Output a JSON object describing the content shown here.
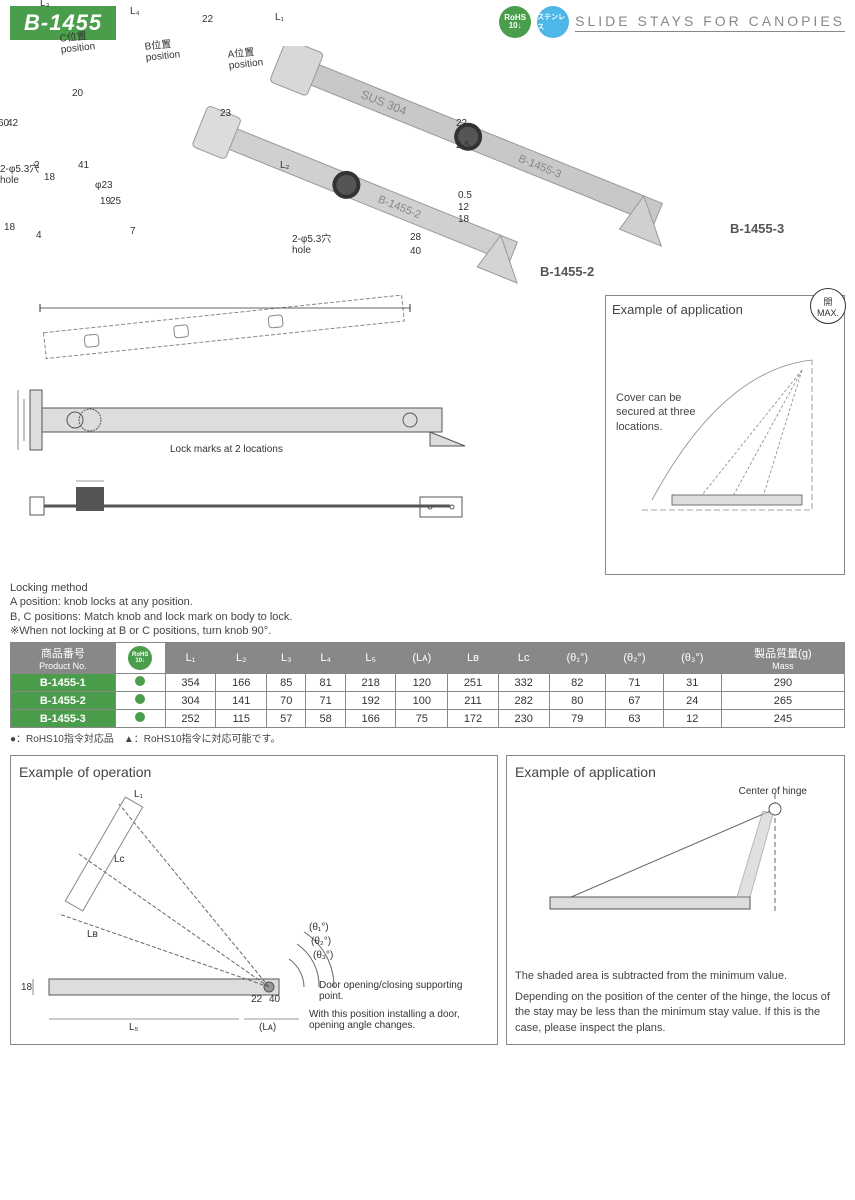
{
  "header": {
    "product_code": "B-1455",
    "rohs_label_top": "RoHS",
    "rohs_label_bottom": "10↓",
    "stainless_label": "ステンレス",
    "category": "SLIDE STAYS FOR CANOPIES"
  },
  "photos": {
    "label_2": "B-1455-2",
    "label_3": "B-1455-3"
  },
  "upper_diagram": {
    "labels": {
      "L1": "L₁",
      "L3": "L₃",
      "L4": "L₄",
      "dim22": "22",
      "posA": "A位置\nposition",
      "posB": "B位置\nposition",
      "posC": "C位置\nposition",
      "d60": "60",
      "d42": "42",
      "d20": "20",
      "d23": "23",
      "dr22": "22",
      "d25p": "2.5",
      "hole1": "2-φ5.3穴\nhole",
      "d2": "2",
      "d18": "18",
      "d41": "41",
      "L2": "L₂",
      "lockmark": "Lock marks at 2 locations",
      "phi23": "φ23",
      "d19": "19",
      "d25": "25",
      "d18b": "18",
      "d4": "4",
      "d7": "7",
      "hole2": "2-φ5.3穴\nhole",
      "d28": "28",
      "d40": "40",
      "d12": "12",
      "d18r": "18",
      "d05": "0.5"
    }
  },
  "app1": {
    "title": "Example of application",
    "max_badge": "開\nMAX.",
    "note": "Cover can be secured at three locations."
  },
  "locking": {
    "title": "Locking method",
    "lineA": "A position: knob locks at any position.",
    "lineBC": "B, C positions: Match knob and lock mark on body to lock.",
    "lineNote": "※When not locking at B or C positions, turn knob 90°."
  },
  "table": {
    "headers": {
      "product": "商品番号",
      "product_sub": "Product No.",
      "rohs": "RoHS",
      "rohs_sub": "10↓",
      "L1": "L₁",
      "L2": "L₂",
      "L3": "L₃",
      "L4": "L₄",
      "L5": "L₅",
      "LA": "(Lᴀ)",
      "LB": "Lʙ",
      "LC": "Lᴄ",
      "t1": "(θ₁°)",
      "t2": "(θ₂°)",
      "t3": "(θ₃°)",
      "mass": "製品質量(g)",
      "mass_sub": "Mass"
    },
    "rows": [
      {
        "product": "B-1455-1",
        "L1": "354",
        "L2": "166",
        "L3": "85",
        "L4": "81",
        "L5": "218",
        "LA": "120",
        "LB": "251",
        "LC": "332",
        "t1": "82",
        "t2": "71",
        "t3": "31",
        "mass": "290"
      },
      {
        "product": "B-1455-2",
        "L1": "304",
        "L2": "141",
        "L3": "70",
        "L4": "71",
        "L5": "192",
        "LA": "100",
        "LB": "211",
        "LC": "282",
        "t1": "80",
        "t2": "67",
        "t3": "24",
        "mass": "265"
      },
      {
        "product": "B-1455-3",
        "L1": "252",
        "L2": "115",
        "L3": "57",
        "L4": "58",
        "L5": "166",
        "LA": "75",
        "LB": "172",
        "LC": "230",
        "t1": "79",
        "t2": "63",
        "t3": "12",
        "mass": "245"
      }
    ],
    "footnote": "●：RoHS10指令対応品　▲：RoHS10指令に対応可能です。"
  },
  "example_op": {
    "title": "Example of operation",
    "labels": {
      "L1": "L₁",
      "LC": "Lᴄ",
      "LB": "Lʙ",
      "L5": "L₅",
      "LA": "(Lᴀ)",
      "t1": "(θ₁°)",
      "t2": "(θ₂°)",
      "t3": "(θ₃°)",
      "d18": "18",
      "d22": "22",
      "d40": "40",
      "support": "Door opening/closing supporting point.",
      "install": "With this position installing a door, opening angle changes."
    }
  },
  "example_app2": {
    "title": "Example of application",
    "hinge_label": "Center of hinge",
    "note1": "The shaded area is subtracted from the minimum value.",
    "note2": "Depending on the position of the center of the hinge, the locus of the stay may be less than the minimum stay value. If this is the case, please inspect the plans."
  },
  "colors": {
    "green": "#4a9d4a",
    "gray": "#888888",
    "lightgray": "#d0d0d0",
    "blue": "#4db8e8"
  }
}
